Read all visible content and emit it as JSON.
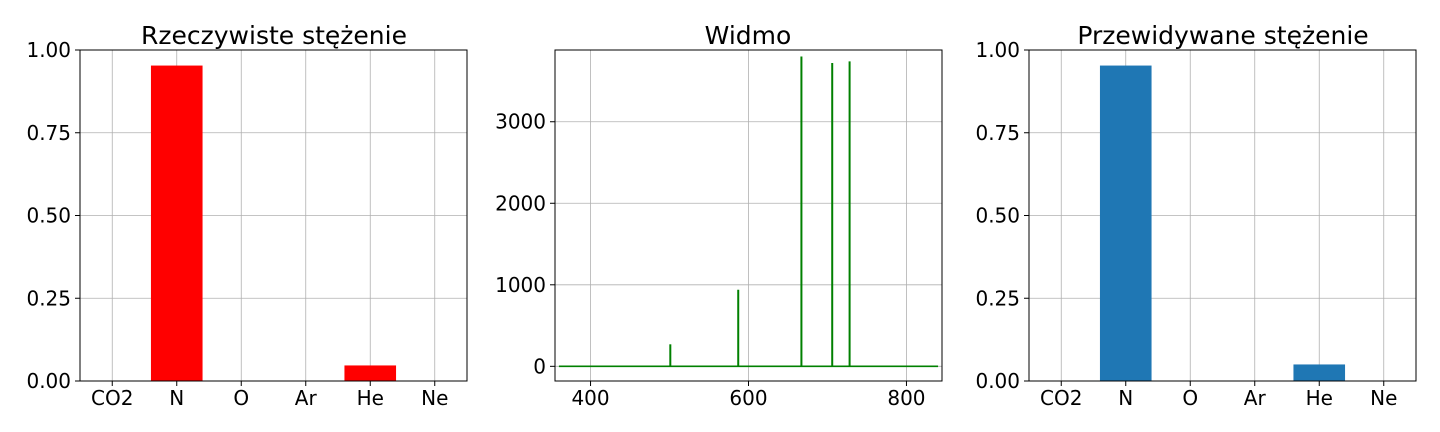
{
  "chart_data": [
    {
      "type": "bar",
      "title": "Rzeczywiste stężenie",
      "categories": [
        "CO2",
        "N",
        "O",
        "Ar",
        "He",
        "Ne"
      ],
      "values": [
        0.0,
        0.953,
        0.0,
        0.0,
        0.047,
        0.0
      ],
      "ylim": [
        0,
        1.0
      ],
      "yticks": [
        "0.00",
        "0.25",
        "0.50",
        "0.75",
        "1.00"
      ],
      "color": "#ff0000",
      "grid": true
    },
    {
      "type": "line",
      "title": "Widmo",
      "xlim": [
        355,
        845
      ],
      "ylim": [
        -180,
        3880
      ],
      "xticks": [
        "400",
        "600",
        "800"
      ],
      "yticks": [
        "0",
        "1000",
        "2000",
        "3000"
      ],
      "baseline": {
        "x_start": 360,
        "x_end": 840,
        "y": 0
      },
      "peaks": [
        {
          "x": 501,
          "y": 270
        },
        {
          "x": 587,
          "y": 940
        },
        {
          "x": 667,
          "y": 3800
        },
        {
          "x": 706,
          "y": 3720
        },
        {
          "x": 728,
          "y": 3740
        }
      ],
      "color": "#008000",
      "grid": true
    },
    {
      "type": "bar",
      "title": "Przewidywane stężenie",
      "categories": [
        "CO2",
        "N",
        "O",
        "Ar",
        "He",
        "Ne"
      ],
      "values": [
        0.0,
        0.953,
        0.0,
        0.0,
        0.05,
        0.0
      ],
      "ylim": [
        0,
        1.0
      ],
      "yticks": [
        "0.00",
        "0.25",
        "0.50",
        "0.75",
        "1.00"
      ],
      "color": "#1f77b4",
      "grid": true
    }
  ]
}
